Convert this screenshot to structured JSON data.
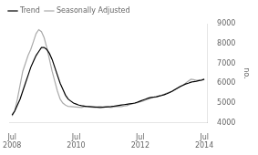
{
  "chart_data": {
    "type": "line",
    "ylabel": "no.",
    "x": [
      2008.5,
      2008.583333,
      2008.666667,
      2008.75,
      2008.833333,
      2008.916667,
      2009,
      2009.083333,
      2009.166667,
      2009.25,
      2009.333333,
      2009.416667,
      2009.5,
      2009.583333,
      2009.666667,
      2009.75,
      2009.833333,
      2009.916667,
      2010,
      2010.083333,
      2010.166667,
      2010.25,
      2010.333333,
      2010.416667,
      2010.5,
      2010.583333,
      2010.666667,
      2010.75,
      2010.833333,
      2010.916667,
      2011,
      2011.083333,
      2011.166667,
      2011.25,
      2011.333333,
      2011.416667,
      2011.5,
      2011.583333,
      2011.666667,
      2011.75,
      2011.833333,
      2011.916667,
      2012,
      2012.083333,
      2012.166667,
      2012.25,
      2012.333333,
      2012.416667,
      2012.5,
      2012.583333,
      2012.666667,
      2012.75,
      2012.833333,
      2012.916667,
      2013,
      2013.083333,
      2013.166667,
      2013.25,
      2013.333333,
      2013.416667,
      2013.5,
      2013.583333,
      2013.666667,
      2013.75,
      2013.833333,
      2013.916667,
      2014,
      2014.083333,
      2014.166667,
      2014.25,
      2014.333333,
      2014.416667,
      2014.5
    ],
    "series": [
      {
        "name": "Trend",
        "color": "#000000",
        "values": [
          4400,
          4600,
          4900,
          5200,
          5600,
          6000,
          6400,
          6800,
          7100,
          7400,
          7600,
          7800,
          7800,
          7700,
          7500,
          7200,
          6800,
          6400,
          6000,
          5700,
          5400,
          5200,
          5100,
          5000,
          4950,
          4900,
          4870,
          4850,
          4830,
          4820,
          4810,
          4800,
          4790,
          4780,
          4790,
          4800,
          4810,
          4820,
          4840,
          4860,
          4880,
          4900,
          4920,
          4940,
          4960,
          4980,
          5000,
          5050,
          5100,
          5150,
          5200,
          5250,
          5280,
          5300,
          5320,
          5350,
          5380,
          5420,
          5470,
          5530,
          5600,
          5680,
          5760,
          5840,
          5900,
          5960,
          6000,
          6050,
          6080,
          6100,
          6130,
          6150,
          6200
        ]
      },
      {
        "name": "Seasonally Adjusted",
        "color": "#aaaaaa",
        "values": [
          4350,
          4600,
          5200,
          5900,
          6600,
          7000,
          7400,
          7700,
          8100,
          8500,
          8700,
          8600,
          8300,
          7800,
          7200,
          6600,
          6100,
          5600,
          5200,
          5000,
          4900,
          4830,
          4820,
          4810,
          4800,
          4790,
          4780,
          4810,
          4820,
          4800,
          4790,
          4780,
          4810,
          4820,
          4800,
          4810,
          4800,
          4780,
          4800,
          4820,
          4820,
          4820,
          4860,
          4870,
          4920,
          4960,
          5000,
          5020,
          5060,
          5100,
          5150,
          5200,
          5250,
          5280,
          5300,
          5350,
          5400,
          5450,
          5500,
          5550,
          5600,
          5680,
          5750,
          5820,
          5900,
          6000,
          6100,
          6200,
          6180,
          6150,
          6160,
          6180,
          6200
        ]
      }
    ],
    "xlim": [
      2008.417,
      2014.583
    ],
    "xticks": [
      {
        "value": 2008.5,
        "label": "Jul\n2008"
      },
      {
        "value": 2010.5,
        "label": "Jul\n2010"
      },
      {
        "value": 2012.5,
        "label": "Jul\n2012"
      },
      {
        "value": 2014.5,
        "label": "Jul\n2014"
      }
    ],
    "ylim": [
      4000,
      9000
    ],
    "yticks": [
      4000,
      5000,
      6000,
      7000,
      8000,
      9000
    ],
    "grid": false,
    "legend": "upper left"
  }
}
